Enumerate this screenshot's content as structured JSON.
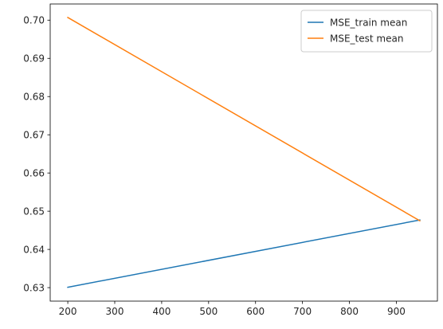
{
  "chart_data": {
    "type": "line",
    "title": "",
    "xlabel": "",
    "ylabel": "",
    "xlim": [
      162.5,
      987.5
    ],
    "ylim": [
      0.62647,
      0.70423
    ],
    "x_ticks": [
      200,
      300,
      400,
      500,
      600,
      700,
      800,
      900
    ],
    "y_ticks": [
      0.63,
      0.64,
      0.65,
      0.66,
      0.67,
      0.68,
      0.69,
      0.7
    ],
    "y_tick_labels": [
      "0.63",
      "0.64",
      "0.65",
      "0.66",
      "0.67",
      "0.68",
      "0.69",
      "0.70"
    ],
    "grid": false,
    "legend_position": "top-right",
    "series": [
      {
        "name": "MSE_train mean",
        "color": "#1f77b4",
        "x": [
          200,
          950
        ],
        "y": [
          0.6301,
          0.6477
        ]
      },
      {
        "name": "MSE_test mean",
        "color": "#ff7f0e",
        "x": [
          200,
          950
        ],
        "y": [
          0.7007,
          0.6475
        ]
      }
    ]
  }
}
